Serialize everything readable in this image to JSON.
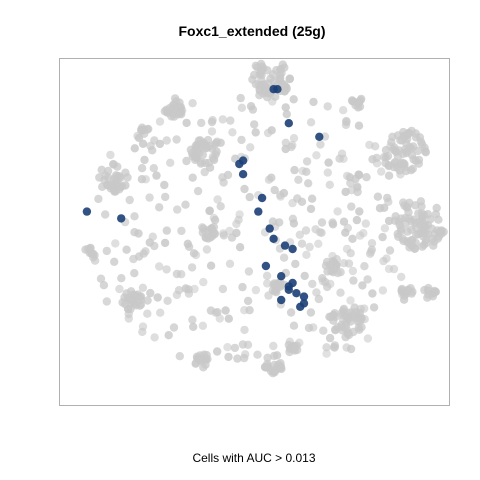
{
  "chart_data": {
    "type": "scatter",
    "title": "Foxc1_extended (25g)",
    "xlabel": "Cells with AUC > 0.013",
    "ylabel": "",
    "colors": {
      "background_cells": "#c8c8c8",
      "positive_cells": "#1c3f77"
    },
    "clusters": [
      {
        "x": 0.54,
        "y": 0.95,
        "r": 0.055,
        "n": 60
      },
      {
        "x": 0.89,
        "y": 0.74,
        "r": 0.06,
        "n": 60
      },
      {
        "x": 0.93,
        "y": 0.52,
        "r": 0.07,
        "n": 80
      },
      {
        "x": 0.13,
        "y": 0.66,
        "r": 0.04,
        "n": 35
      },
      {
        "x": 0.37,
        "y": 0.74,
        "r": 0.04,
        "n": 35
      },
      {
        "x": 0.29,
        "y": 0.87,
        "r": 0.03,
        "n": 25
      },
      {
        "x": 0.74,
        "y": 0.24,
        "r": 0.045,
        "n": 40
      },
      {
        "x": 0.18,
        "y": 0.3,
        "r": 0.03,
        "n": 25
      },
      {
        "x": 0.55,
        "y": 0.11,
        "r": 0.025,
        "n": 20
      },
      {
        "x": 0.36,
        "y": 0.12,
        "r": 0.02,
        "n": 15
      },
      {
        "x": 0.56,
        "y": 0.34,
        "r": 0.02,
        "n": 15
      },
      {
        "x": 0.38,
        "y": 0.5,
        "r": 0.02,
        "n": 15
      },
      {
        "x": 0.7,
        "y": 0.4,
        "r": 0.02,
        "n": 15
      },
      {
        "x": 0.9,
        "y": 0.33,
        "r": 0.018,
        "n": 12
      },
      {
        "x": 0.96,
        "y": 0.32,
        "r": 0.018,
        "n": 12
      },
      {
        "x": 0.07,
        "y": 0.44,
        "r": 0.016,
        "n": 10
      },
      {
        "x": 0.6,
        "y": 0.16,
        "r": 0.016,
        "n": 10
      },
      {
        "x": 0.77,
        "y": 0.88,
        "r": 0.016,
        "n": 10
      },
      {
        "x": 0.21,
        "y": 0.81,
        "r": 0.014,
        "n": 8
      }
    ],
    "scatter_seed": 7,
    "scatter_count": 420,
    "scatter_bounds": {
      "xmin": 0.08,
      "xmax": 0.9,
      "ymin": 0.1,
      "ymax": 0.9
    },
    "positive_points": [
      {
        "x": 0.55,
        "y": 0.92
      },
      {
        "x": 0.56,
        "y": 0.92
      },
      {
        "x": 0.59,
        "y": 0.82
      },
      {
        "x": 0.67,
        "y": 0.78
      },
      {
        "x": 0.47,
        "y": 0.71
      },
      {
        "x": 0.46,
        "y": 0.7
      },
      {
        "x": 0.06,
        "y": 0.56
      },
      {
        "x": 0.15,
        "y": 0.54
      },
      {
        "x": 0.51,
        "y": 0.56
      },
      {
        "x": 0.54,
        "y": 0.51
      },
      {
        "x": 0.55,
        "y": 0.48
      },
      {
        "x": 0.58,
        "y": 0.46
      },
      {
        "x": 0.53,
        "y": 0.4
      },
      {
        "x": 0.57,
        "y": 0.37
      },
      {
        "x": 0.59,
        "y": 0.34
      },
      {
        "x": 0.6,
        "y": 0.35
      },
      {
        "x": 0.61,
        "y": 0.32
      },
      {
        "x": 0.57,
        "y": 0.3
      },
      {
        "x": 0.63,
        "y": 0.29
      },
      {
        "x": 0.63,
        "y": 0.31
      },
      {
        "x": 0.47,
        "y": 0.67
      },
      {
        "x": 0.52,
        "y": 0.6
      },
      {
        "x": 0.59,
        "y": 0.33
      },
      {
        "x": 0.62,
        "y": 0.28
      },
      {
        "x": 0.6,
        "y": 0.45
      }
    ]
  }
}
